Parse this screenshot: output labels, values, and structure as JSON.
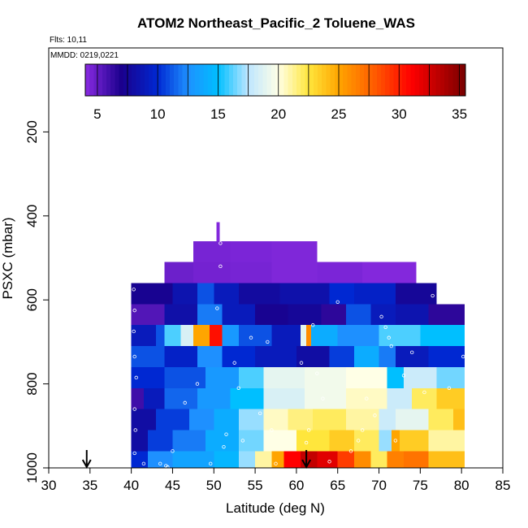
{
  "chart_data": {
    "type": "heatmap",
    "title": "ATOM2 Northeast_Pacific_2 Toluene_WAS",
    "flights_label": "Flts: 10,11",
    "date_label": "MMDD: 0219,0221",
    "xlabel": "Latitude (deg N)",
    "ylabel": "PSXC (mbar)",
    "xlim": [
      30,
      85
    ],
    "ylim": [
      1000,
      0
    ],
    "x_ticks": [
      "30",
      "35",
      "40",
      "45",
      "50",
      "55",
      "60",
      "65",
      "70",
      "75",
      "80",
      "85"
    ],
    "y_ticks": [
      "200",
      "400",
      "600",
      "800",
      "1000"
    ],
    "colorbar": {
      "range": [
        4,
        35.5
      ],
      "ticks": [
        "5",
        "10",
        "15",
        "20",
        "25",
        "30",
        "35"
      ]
    },
    "rows": [
      {
        "p0": 415,
        "p1": 460,
        "segs": [
          [
            50.3,
            50.7,
            4.2
          ]
        ]
      },
      {
        "p0": 460,
        "p1": 510,
        "segs": [
          [
            47.5,
            52,
            4.5
          ],
          [
            52,
            57,
            4.4
          ],
          [
            57,
            62.5,
            4.3
          ]
        ]
      },
      {
        "p0": 510,
        "p1": 560,
        "segs": [
          [
            44,
            47.5,
            4.8
          ],
          [
            47.5,
            52,
            4.6
          ],
          [
            52,
            57,
            4.5
          ],
          [
            57,
            62.5,
            4.3
          ],
          [
            62.5,
            68,
            4.4
          ],
          [
            68,
            74.5,
            4.2
          ]
        ]
      },
      {
        "p0": 560,
        "p1": 610,
        "segs": [
          [
            40,
            45,
            7.2
          ],
          [
            45,
            48,
            8.5
          ],
          [
            48,
            50,
            11
          ],
          [
            50,
            53,
            9
          ],
          [
            53,
            58,
            7.8
          ],
          [
            58,
            64,
            8.3
          ],
          [
            64,
            67,
            10
          ],
          [
            67,
            72,
            9.5
          ],
          [
            72,
            77,
            7.5
          ]
        ]
      },
      {
        "p0": 610,
        "p1": 660,
        "segs": [
          [
            40,
            44,
            5.5
          ],
          [
            44,
            48,
            8.2
          ],
          [
            48,
            51,
            12
          ],
          [
            51,
            55,
            9
          ],
          [
            55,
            59,
            7.2
          ],
          [
            59,
            63,
            7.5
          ],
          [
            63,
            66,
            6.5
          ],
          [
            66,
            69,
            11
          ],
          [
            69,
            72,
            9
          ],
          [
            72,
            76,
            8.5
          ],
          [
            76,
            80.4,
            6.5
          ]
        ]
      },
      {
        "p0": 660,
        "p1": 710,
        "segs": [
          [
            40,
            43,
            9
          ],
          [
            43,
            44,
            11
          ],
          [
            44,
            46,
            16
          ],
          [
            46,
            47.5,
            18.5
          ],
          [
            47.5,
            49.5,
            25
          ],
          [
            49.5,
            51,
            30.5
          ],
          [
            51,
            53,
            13
          ],
          [
            53,
            57,
            11
          ],
          [
            57,
            60.5,
            9
          ],
          [
            60.5,
            61.2,
            19
          ],
          [
            61.2,
            61.8,
            26
          ],
          [
            61.8,
            65,
            14
          ],
          [
            65,
            70,
            12.5
          ],
          [
            70,
            75,
            16
          ],
          [
            75,
            80.4,
            15
          ]
        ]
      },
      {
        "p0": 710,
        "p1": 760,
        "segs": [
          [
            40,
            44,
            11
          ],
          [
            44,
            48,
            9.5
          ],
          [
            48,
            51,
            12.5
          ],
          [
            51,
            55,
            10
          ],
          [
            55,
            60,
            9
          ],
          [
            60,
            64,
            8
          ],
          [
            64,
            67,
            10.5
          ],
          [
            67,
            70,
            14
          ],
          [
            70,
            72,
            12
          ],
          [
            72,
            76,
            9
          ],
          [
            76,
            80.4,
            10
          ]
        ]
      },
      {
        "p0": 760,
        "p1": 810,
        "segs": [
          [
            40,
            44,
            10
          ],
          [
            44,
            49,
            11
          ],
          [
            49,
            53,
            13
          ],
          [
            53,
            56,
            16
          ],
          [
            56,
            61,
            19
          ],
          [
            61,
            66,
            19.5
          ],
          [
            66,
            71,
            20
          ],
          [
            71,
            73,
            15
          ],
          [
            73,
            77,
            18
          ],
          [
            77,
            80.4,
            16.5
          ]
        ]
      },
      {
        "p0": 810,
        "p1": 860,
        "segs": [
          [
            40,
            41.5,
            6
          ],
          [
            41.5,
            44,
            9
          ],
          [
            44,
            48,
            11.5
          ],
          [
            48,
            52,
            13
          ],
          [
            52,
            56,
            15
          ],
          [
            56,
            61,
            18.5
          ],
          [
            61,
            66,
            19.5
          ],
          [
            66,
            71,
            20.5
          ],
          [
            71,
            74,
            18
          ],
          [
            74,
            77,
            22
          ],
          [
            77,
            80.4,
            23.5
          ]
        ]
      },
      {
        "p0": 860,
        "p1": 910,
        "segs": [
          [
            40,
            43,
            8
          ],
          [
            43,
            47,
            10.5
          ],
          [
            47,
            50,
            12.5
          ],
          [
            50,
            53,
            14
          ],
          [
            53,
            56,
            17
          ],
          [
            56,
            59,
            20.5
          ],
          [
            59,
            62,
            21.5
          ],
          [
            62,
            66,
            22
          ],
          [
            66,
            70,
            21
          ],
          [
            70,
            72,
            18
          ],
          [
            72,
            76,
            19
          ],
          [
            76,
            79,
            22
          ],
          [
            79,
            80.4,
            24
          ]
        ]
      },
      {
        "p0": 910,
        "p1": 960,
        "segs": [
          [
            40,
            42,
            8
          ],
          [
            42,
            45,
            10.5
          ],
          [
            45,
            49,
            12
          ],
          [
            49,
            53,
            14
          ],
          [
            53,
            56,
            16.5
          ],
          [
            56,
            60,
            20
          ],
          [
            60,
            64,
            22.5
          ],
          [
            64,
            67,
            23.5
          ],
          [
            67,
            70,
            22
          ],
          [
            70,
            71.5,
            17
          ],
          [
            71.5,
            72.5,
            25
          ],
          [
            72.5,
            76,
            23.5
          ],
          [
            76,
            80.4,
            21
          ]
        ]
      },
      {
        "p0": 960,
        "p1": 1000,
        "segs": [
          [
            40,
            42,
            10
          ],
          [
            42,
            45,
            12.5
          ],
          [
            45,
            50,
            13.5
          ],
          [
            50,
            53,
            14.5
          ],
          [
            53,
            55,
            17
          ],
          [
            55,
            57,
            21
          ],
          [
            57,
            58.5,
            25
          ],
          [
            58.5,
            60.5,
            31
          ],
          [
            60.5,
            62.5,
            33
          ],
          [
            62.5,
            65,
            32
          ],
          [
            65,
            67,
            29
          ],
          [
            67,
            69,
            26
          ],
          [
            69,
            71,
            22
          ],
          [
            71,
            73,
            26.5
          ],
          [
            73,
            76,
            27
          ],
          [
            76,
            80.4,
            24
          ]
        ]
      }
    ],
    "samples": [
      [
        40.3,
        575
      ],
      [
        40.4,
        625
      ],
      [
        40.3,
        675
      ],
      [
        40.4,
        735
      ],
      [
        40.6,
        785
      ],
      [
        40.4,
        860
      ],
      [
        40.5,
        910
      ],
      [
        40.4,
        965
      ],
      [
        41.5,
        990
      ],
      [
        43.5,
        990
      ],
      [
        44.2,
        995
      ],
      [
        44.4,
        998
      ],
      [
        45,
        960
      ],
      [
        46.5,
        845
      ],
      [
        48,
        800
      ],
      [
        49.6,
        990
      ],
      [
        50.4,
        620
      ],
      [
        50.8,
        520
      ],
      [
        50.8,
        465
      ],
      [
        51.2,
        950
      ],
      [
        51.5,
        920
      ],
      [
        52.5,
        750
      ],
      [
        53,
        810
      ],
      [
        53.5,
        935
      ],
      [
        54.5,
        690
      ],
      [
        55.6,
        870
      ],
      [
        56.5,
        700
      ],
      [
        57,
        910
      ],
      [
        57.5,
        990
      ],
      [
        60.6,
        750
      ],
      [
        61.2,
        940
      ],
      [
        61.5,
        910
      ],
      [
        62,
        660
      ],
      [
        62.5,
        775
      ],
      [
        63.2,
        835
      ],
      [
        64,
        985
      ],
      [
        65,
        605
      ],
      [
        66.6,
        960
      ],
      [
        67.5,
        935
      ],
      [
        68,
        910
      ],
      [
        68.5,
        835
      ],
      [
        69.5,
        875
      ],
      [
        70.3,
        640
      ],
      [
        70.8,
        665
      ],
      [
        71.2,
        690
      ],
      [
        71.5,
        710
      ],
      [
        72,
        935
      ],
      [
        73,
        780
      ],
      [
        74,
        725
      ],
      [
        75.5,
        820
      ],
      [
        76.5,
        590
      ],
      [
        78.5,
        810
      ],
      [
        80.2,
        735
      ]
    ],
    "arrows": [
      {
        "x": 34.6,
        "label": ""
      },
      {
        "x": 61.2,
        "label": ""
      }
    ]
  }
}
